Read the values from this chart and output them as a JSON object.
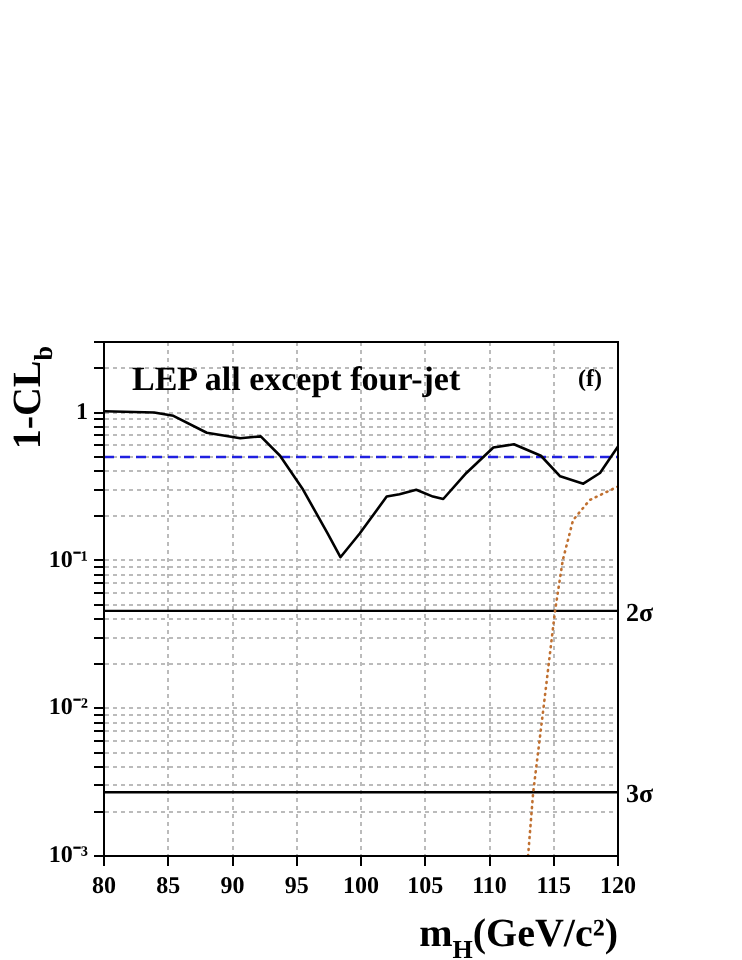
{
  "chart_data": {
    "type": "line",
    "xlabel": "m$_{H}$(GeV/c²)",
    "ylabel": "1-CL$_{b}$",
    "annotations": [
      "LEP all except four-jet",
      "(f)"
    ],
    "log": "y",
    "grid": true,
    "xlim": [
      80,
      120
    ],
    "ylim": [
      0.001,
      3
    ],
    "xticks": [
      80,
      85,
      90,
      95,
      100,
      105,
      110,
      115,
      120
    ],
    "yticks": [
      {
        "value": 0.001,
        "label": "10⁻³"
      },
      {
        "value": 0.002,
        "label": null
      },
      {
        "value": 0.003,
        "label": null
      },
      {
        "value": 0.004,
        "label": null
      },
      {
        "value": 0.005,
        "label": null
      },
      {
        "value": 0.006,
        "label": null
      },
      {
        "value": 0.007,
        "label": null
      },
      {
        "value": 0.008,
        "label": null
      },
      {
        "value": 0.009,
        "label": null
      },
      {
        "value": 0.01,
        "label": "10⁻²"
      },
      {
        "value": 0.02,
        "label": null
      },
      {
        "value": 0.03,
        "label": null
      },
      {
        "value": 0.04,
        "label": null
      },
      {
        "value": 0.05,
        "label": null
      },
      {
        "value": 0.06,
        "label": null
      },
      {
        "value": 0.07,
        "label": null
      },
      {
        "value": 0.08,
        "label": null
      },
      {
        "value": 0.09,
        "label": null
      },
      {
        "value": 0.1,
        "label": "10⁻¹"
      },
      {
        "value": 0.2,
        "label": null
      },
      {
        "value": 0.3,
        "label": null
      },
      {
        "value": 0.4,
        "label": null
      },
      {
        "value": 0.5,
        "label": null
      },
      {
        "value": 0.6,
        "label": null
      },
      {
        "value": 0.7,
        "label": null
      },
      {
        "value": 0.8,
        "label": null
      },
      {
        "value": 0.9,
        "label": null
      },
      {
        "value": 1,
        "label": "1"
      },
      {
        "value": 2,
        "label": null
      },
      {
        "value": 3,
        "label": null
      }
    ],
    "marker": "none",
    "ref_lines": [
      {
        "axis": "y",
        "value": 0.5,
        "color": "#2020e0",
        "line_style": "dashed"
      },
      {
        "axis": "y",
        "value": 0.0455,
        "label": "2σ",
        "color": "#000000",
        "line_style": "solid"
      },
      {
        "axis": "y",
        "value": 0.0027,
        "label": "3σ",
        "color": "#000000",
        "line_style": "solid"
      }
    ],
    "series": [
      {
        "color": "#000000",
        "line_style": "solid",
        "x": [
          80,
          83.9,
          85.4,
          88,
          90.6,
          92.2,
          93.7,
          95.5,
          97.4,
          98.4,
          99.9,
          102,
          103,
          104.3,
          105.6,
          106.4,
          108.2,
          110.3,
          111.9,
          114,
          115.5,
          117.3,
          118.6,
          120
        ],
        "values": [
          1.02,
          1,
          0.95,
          0.73,
          0.67,
          0.69,
          0.51,
          0.3,
          0.152,
          0.105,
          0.152,
          0.27,
          0.28,
          0.3,
          0.27,
          0.26,
          0.39,
          0.58,
          0.61,
          0.51,
          0.37,
          0.33,
          0.39,
          0.59
        ]
      },
      {
        "color": "#c07030",
        "line_style": "dotted",
        "x": [
          113,
          113.4,
          114.2,
          115.1,
          115.7,
          116.5,
          117.8,
          120
        ],
        "values": [
          0.001,
          0.0027,
          0.01,
          0.0455,
          0.1,
          0.187,
          0.256,
          0.316
        ]
      }
    ]
  }
}
